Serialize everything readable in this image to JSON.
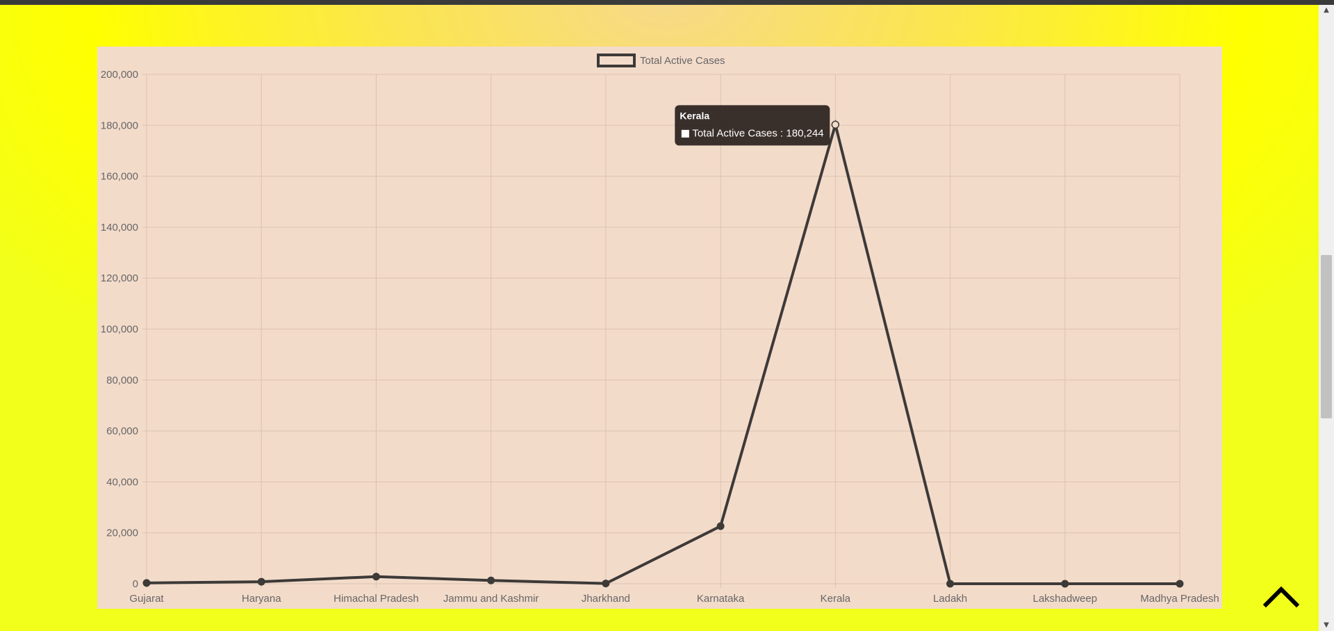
{
  "chart_data": {
    "type": "line",
    "categories": [
      "Gujarat",
      "Haryana",
      "Himachal Pradesh",
      "Jammu and Kashmir",
      "Jharkhand",
      "Karnataka",
      "Kerala",
      "Ladakh",
      "Lakshadweep",
      "Madhya Pradesh"
    ],
    "series": [
      {
        "name": "Total Active Cases",
        "values": [
          300,
          800,
          2800,
          1300,
          100,
          22600,
          180244,
          0,
          0,
          0
        ]
      }
    ],
    "ylim": [
      0,
      200000
    ],
    "yticks": [
      0,
      20000,
      40000,
      60000,
      80000,
      100000,
      120000,
      140000,
      160000,
      180000,
      200000
    ],
    "ytick_labels": [
      "0",
      "20,000",
      "40,000",
      "60,000",
      "80,000",
      "100,000",
      "120,000",
      "140,000",
      "160,000",
      "180,000",
      "200,000"
    ],
    "grid": true,
    "legend": "top-center",
    "line_color": "#3d3a38",
    "tooltip": {
      "title": "Kerala",
      "label": "Total Active Cases : 180,244",
      "category_index": 6
    }
  },
  "colors": {
    "page_background": "#ffff00",
    "panel_background": "#f3dbca",
    "grid": "#dbc2b1",
    "axis_text": "#666666",
    "tooltip_background": "#2e2622"
  },
  "icons": {
    "back_to_top": "chevron-up-icon",
    "scroll_up": "scroll-up-arrow-icon",
    "scroll_down": "scroll-down-arrow-icon"
  }
}
